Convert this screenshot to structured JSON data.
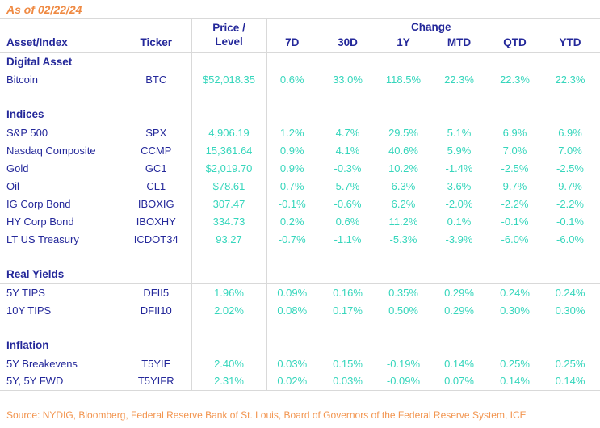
{
  "colors": {
    "navy_text": "#24289a",
    "teal_values": "#36d6bc",
    "orange_title": "#ef8a43",
    "orange_source": "#f2944e",
    "grid_line": "#d9d9d9"
  },
  "chart_data": {
    "type": "table",
    "as_of": "As of 02/22/24",
    "header": {
      "asset": "Asset/Index",
      "ticker": "Ticker",
      "price_line1": "Price /",
      "price_line2": "Level",
      "change_group": "Change",
      "periods": [
        "7D",
        "30D",
        "1Y",
        "MTD",
        "QTD",
        "YTD"
      ]
    },
    "sections": [
      {
        "name": "Digital Asset",
        "rows": [
          {
            "asset": "Bitcoin",
            "ticker": "BTC",
            "price": "$52,018.35",
            "changes": [
              "0.6%",
              "33.0%",
              "118.5%",
              "22.3%",
              "22.3%",
              "22.3%"
            ]
          }
        ]
      },
      {
        "name": "Indices",
        "rows": [
          {
            "asset": "S&P 500",
            "ticker": "SPX",
            "price": "4,906.19",
            "changes": [
              "1.2%",
              "4.7%",
              "29.5%",
              "5.1%",
              "6.9%",
              "6.9%"
            ]
          },
          {
            "asset": "Nasdaq Composite",
            "ticker": "CCMP",
            "price": "15,361.64",
            "changes": [
              "0.9%",
              "4.1%",
              "40.6%",
              "5.9%",
              "7.0%",
              "7.0%"
            ]
          },
          {
            "asset": "Gold",
            "ticker": "GC1",
            "price": "$2,019.70",
            "changes": [
              "0.9%",
              "-0.3%",
              "10.2%",
              "-1.4%",
              "-2.5%",
              "-2.5%"
            ]
          },
          {
            "asset": "Oil",
            "ticker": "CL1",
            "price": "$78.61",
            "changes": [
              "0.7%",
              "5.7%",
              "6.3%",
              "3.6%",
              "9.7%",
              "9.7%"
            ]
          },
          {
            "asset": "IG Corp Bond",
            "ticker": "IBOXIG",
            "price": "307.47",
            "changes": [
              "-0.1%",
              "-0.6%",
              "6.2%",
              "-2.0%",
              "-2.2%",
              "-2.2%"
            ]
          },
          {
            "asset": "HY Corp Bond",
            "ticker": "IBOXHY",
            "price": "334.73",
            "changes": [
              "0.2%",
              "0.6%",
              "11.2%",
              "0.1%",
              "-0.1%",
              "-0.1%"
            ]
          },
          {
            "asset": "LT US Treasury",
            "ticker": "ICDOT34",
            "price": "93.27",
            "changes": [
              "-0.7%",
              "-1.1%",
              "-5.3%",
              "-3.9%",
              "-6.0%",
              "-6.0%"
            ]
          }
        ]
      },
      {
        "name": "Real Yields",
        "rows": [
          {
            "asset": "5Y TIPS",
            "ticker": "DFII5",
            "price": "1.96%",
            "changes": [
              "0.09%",
              "0.16%",
              "0.35%",
              "0.29%",
              "0.24%",
              "0.24%"
            ]
          },
          {
            "asset": "10Y TIPS",
            "ticker": "DFII10",
            "price": "2.02%",
            "changes": [
              "0.08%",
              "0.17%",
              "0.50%",
              "0.29%",
              "0.30%",
              "0.30%"
            ]
          }
        ]
      },
      {
        "name": "Inflation",
        "rows": [
          {
            "asset": "5Y Breakevens",
            "ticker": "T5YIE",
            "price": "2.40%",
            "changes": [
              "0.03%",
              "0.15%",
              "-0.19%",
              "0.14%",
              "0.25%",
              "0.25%"
            ]
          },
          {
            "asset": "5Y, 5Y FWD",
            "ticker": "T5YIFR",
            "price": "2.31%",
            "changes": [
              "0.02%",
              "0.03%",
              "-0.09%",
              "0.07%",
              "0.14%",
              "0.14%"
            ]
          }
        ]
      }
    ],
    "source": "Source: NYDIG, Bloomberg, Federal Reserve Bank of St. Louis, Board of Governors of the Federal Reserve System, ICE"
  }
}
